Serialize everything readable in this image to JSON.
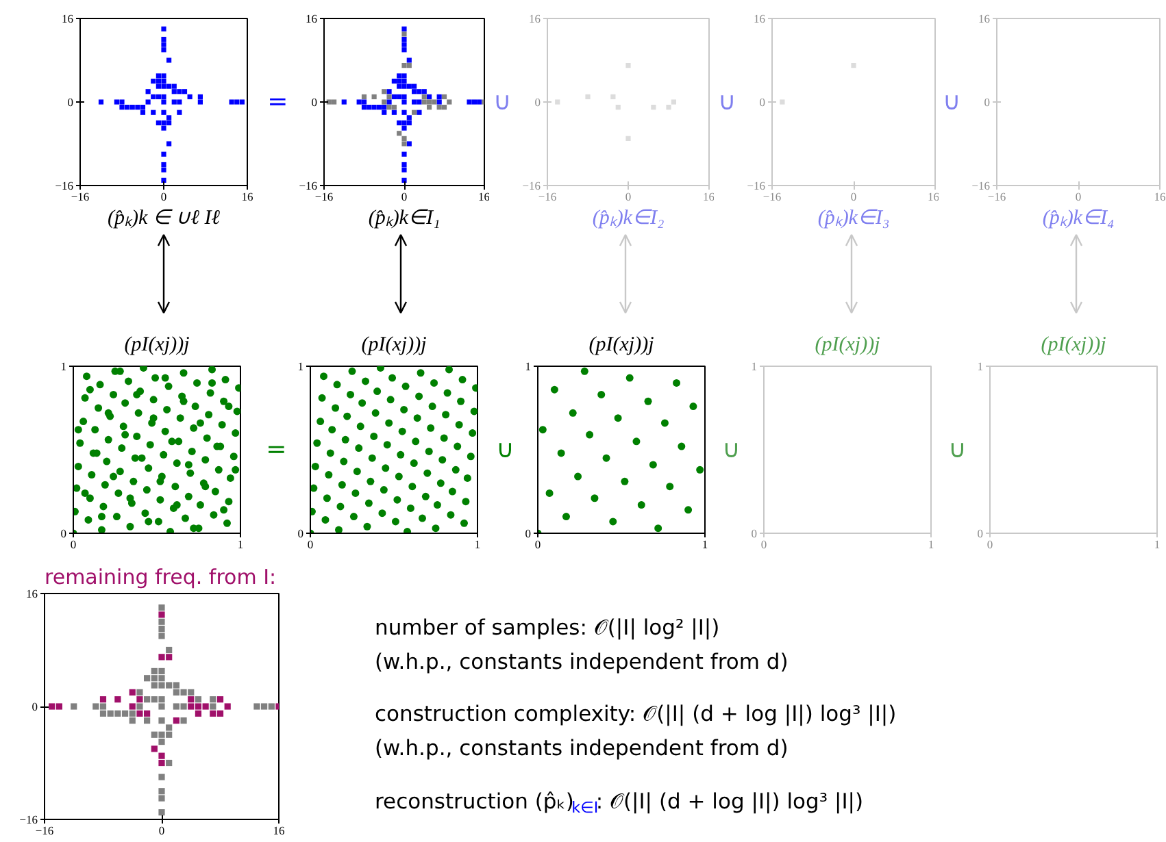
{
  "chart_data": [
    {
      "type": "scatter",
      "xlabel": "(p̂ₖ)k ∈ ∪ℓ Iℓ",
      "xlim": [
        -16,
        16
      ],
      "ylim": [
        -16,
        16
      ],
      "xticks": [
        -16,
        0,
        16
      ],
      "yticks": [
        -16,
        0,
        16
      ],
      "marker": "square",
      "series": [
        {
          "color": "#0000ff",
          "x": [
            0,
            0,
            0,
            0,
            1,
            -1,
            0,
            -2,
            -1,
            0,
            -1,
            0,
            1,
            2,
            -3,
            2,
            3,
            4,
            -2,
            -1,
            0,
            5,
            7,
            -12,
            -9,
            -8,
            -3,
            0,
            2,
            3,
            7,
            13,
            14,
            15,
            -8,
            -7,
            -6,
            -5,
            -4,
            -4,
            -2,
            0,
            3,
            1,
            -1,
            0,
            1,
            0,
            1,
            0,
            0,
            0,
            0
          ],
          "values": [
            14,
            12,
            11,
            10,
            8,
            5,
            5,
            4,
            4,
            4,
            3,
            3,
            3,
            3,
            2,
            2,
            2,
            2,
            1,
            1,
            1,
            1,
            1,
            0,
            0,
            0,
            0,
            0,
            0,
            0,
            0,
            0,
            0,
            0,
            -1,
            -1,
            -1,
            -1,
            -1,
            -2,
            -2,
            -2,
            -2,
            -3,
            -4,
            -4,
            -4,
            -5,
            -8,
            -10,
            -12,
            -13,
            -15
          ]
        }
      ]
    },
    {
      "type": "scatter",
      "xlabel": "(p̂ₖ)k∈I₁",
      "annotations": [
        "="
      ],
      "xlim": [
        -16,
        16
      ],
      "ylim": [
        -16,
        16
      ],
      "xticks": [
        -16,
        0,
        16
      ],
      "yticks": [
        -16,
        0,
        16
      ],
      "marker": "square",
      "series": [
        {
          "color": "#0000ff",
          "x": [
            0,
            0,
            0,
            0,
            1,
            -1,
            0,
            -2,
            -1,
            0,
            -1,
            0,
            1,
            2,
            -3,
            2,
            3,
            4,
            -2,
            -1,
            0,
            5,
            7,
            -12,
            -9,
            -8,
            -3,
            0,
            2,
            3,
            7,
            13,
            14,
            15,
            -8,
            -7,
            -6,
            -5,
            -4,
            -4,
            -2,
            0,
            3,
            1,
            -1,
            0,
            1,
            0,
            1,
            0,
            0,
            0,
            0
          ],
          "values": [
            14,
            12,
            11,
            10,
            8,
            5,
            5,
            4,
            4,
            4,
            3,
            3,
            3,
            3,
            2,
            2,
            2,
            2,
            1,
            1,
            1,
            1,
            1,
            0,
            0,
            0,
            0,
            0,
            0,
            0,
            0,
            0,
            0,
            0,
            -1,
            -1,
            -1,
            -1,
            -1,
            -2,
            -2,
            -2,
            -2,
            -3,
            -4,
            -4,
            -4,
            -5,
            -8,
            -10,
            -12,
            -13,
            -15
          ]
        },
        {
          "color": "#808080",
          "x": [
            0,
            0,
            1,
            -4,
            -8,
            -6,
            -3,
            4,
            8,
            -15,
            -14,
            -4,
            4,
            5,
            6,
            9,
            16,
            -3,
            -2,
            5,
            7,
            8,
            2,
            -1,
            0,
            0
          ],
          "values": [
            13,
            7,
            7,
            2,
            1,
            1,
            1,
            1,
            1,
            0,
            0,
            0,
            0,
            0,
            0,
            0,
            0,
            -1,
            -1,
            -1,
            -1,
            -1,
            -2,
            -6,
            -7,
            -8
          ]
        }
      ]
    },
    {
      "type": "scatter",
      "xlabel": "(p̂ₖ)k∈I₂",
      "annotations": [
        "∪"
      ],
      "xlim": [
        -16,
        16
      ],
      "ylim": [
        -16,
        16
      ],
      "xticks": [
        -16,
        0,
        16
      ],
      "yticks": [
        -16,
        0,
        16
      ],
      "marker": "square",
      "series": [
        {
          "color": "#dcdcdc",
          "x": [
            -14,
            -8,
            -3,
            -2,
            0,
            0,
            5,
            8,
            9
          ],
          "values": [
            0,
            1,
            1,
            -1,
            7,
            -7,
            -1,
            -1,
            0
          ]
        }
      ]
    },
    {
      "type": "scatter",
      "xlabel": "(p̂ₖ)k∈I₃",
      "annotations": [
        "∪"
      ],
      "xlim": [
        -16,
        16
      ],
      "ylim": [
        -16,
        16
      ],
      "xticks": [
        -16,
        0,
        16
      ],
      "yticks": [
        -16,
        0,
        16
      ],
      "marker": "square",
      "series": [
        {
          "color": "#dcdcdc",
          "x": [
            -14,
            0
          ],
          "values": [
            0,
            7
          ]
        }
      ]
    },
    {
      "type": "scatter",
      "xlabel": "(p̂ₖ)k∈I₄",
      "annotations": [
        "∪"
      ],
      "xlim": [
        -16,
        16
      ],
      "ylim": [
        -16,
        16
      ],
      "xticks": [
        -16,
        0,
        16
      ],
      "yticks": [
        -16,
        0,
        16
      ]
    },
    {
      "type": "scatter",
      "title": "(pI(xj))j",
      "xlim": [
        0,
        1
      ],
      "ylim": [
        0,
        1
      ],
      "xticks": [
        0,
        1
      ],
      "yticks": [
        0,
        1
      ],
      "marker": "circle",
      "series": [
        {
          "color": "#008000",
          "x": [
            0.0,
            0.01,
            0.02,
            0.03,
            0.04,
            0.06,
            0.07,
            0.08,
            0.09,
            0.1,
            0.11,
            0.12,
            0.13,
            0.15,
            0.16,
            0.17,
            0.18,
            0.19,
            0.2,
            0.21,
            0.22,
            0.24,
            0.25,
            0.26,
            0.27,
            0.28,
            0.29,
            0.3,
            0.31,
            0.33,
            0.34,
            0.35,
            0.36,
            0.37,
            0.38,
            0.39,
            0.4,
            0.42,
            0.43,
            0.44,
            0.45,
            0.46,
            0.47,
            0.48,
            0.49,
            0.51,
            0.52,
            0.53,
            0.54,
            0.55,
            0.56,
            0.57,
            0.58,
            0.6,
            0.61,
            0.62,
            0.63,
            0.64,
            0.65,
            0.66,
            0.67,
            0.69,
            0.7,
            0.71,
            0.72,
            0.73,
            0.74,
            0.75,
            0.76,
            0.78,
            0.79,
            0.8,
            0.81,
            0.82,
            0.83,
            0.84,
            0.85,
            0.87,
            0.88,
            0.89,
            0.9,
            0.91,
            0.92,
            0.93,
            0.94,
            0.96,
            0.97,
            0.98,
            0.99,
            0.03,
            0.07,
            0.1,
            0.14,
            0.17,
            0.21,
            0.24,
            0.28,
            0.31,
            0.34,
            0.38,
            0.41,
            0.45,
            0.48,
            0.52,
            0.55,
            0.59,
            0.62,
            0.66,
            0.69,
            0.72,
            0.76,
            0.79,
            0.83,
            0.86,
            0.9,
            0.93,
            0.97
          ],
          "values": [
            0.0,
            0.13,
            0.27,
            0.4,
            0.54,
            0.67,
            0.81,
            0.94,
            0.08,
            0.21,
            0.35,
            0.48,
            0.62,
            0.75,
            0.89,
            0.02,
            0.16,
            0.29,
            0.43,
            0.56,
            0.7,
            0.83,
            0.97,
            0.1,
            0.24,
            0.37,
            0.51,
            0.64,
            0.78,
            0.91,
            0.04,
            0.18,
            0.31,
            0.45,
            0.58,
            0.72,
            0.85,
            0.99,
            0.12,
            0.26,
            0.39,
            0.53,
            0.66,
            0.8,
            0.93,
            0.07,
            0.2,
            0.34,
            0.47,
            0.61,
            0.74,
            0.88,
            0.01,
            0.15,
            0.28,
            0.42,
            0.55,
            0.69,
            0.82,
            0.96,
            0.09,
            0.22,
            0.36,
            0.49,
            0.63,
            0.76,
            0.9,
            0.03,
            0.17,
            0.3,
            0.44,
            0.57,
            0.71,
            0.84,
            0.98,
            0.11,
            0.25,
            0.38,
            0.52,
            0.65,
            0.79,
            0.92,
            0.06,
            0.19,
            0.33,
            0.46,
            0.6,
            0.73,
            0.87,
            0.62,
            0.24,
            0.86,
            0.48,
            0.1,
            0.72,
            0.34,
            0.97,
            0.59,
            0.21,
            0.83,
            0.45,
            0.07,
            0.69,
            0.31,
            0.93,
            0.55,
            0.17,
            0.79,
            0.41,
            0.03,
            0.66,
            0.28,
            0.9,
            0.52,
            0.14,
            0.76,
            0.38
          ]
        }
      ]
    },
    {
      "type": "scatter",
      "title": "(pI(xj))j",
      "annotations": [
        "="
      ],
      "xlim": [
        0,
        1
      ],
      "ylim": [
        0,
        1
      ],
      "xticks": [
        0,
        1
      ],
      "yticks": [
        0,
        1
      ],
      "marker": "circle",
      "series": [
        {
          "color": "#008000",
          "x": [
            0.0,
            0.01,
            0.02,
            0.03,
            0.04,
            0.06,
            0.07,
            0.08,
            0.09,
            0.1,
            0.11,
            0.12,
            0.13,
            0.15,
            0.16,
            0.17,
            0.18,
            0.19,
            0.2,
            0.21,
            0.22,
            0.24,
            0.25,
            0.26,
            0.27,
            0.28,
            0.29,
            0.3,
            0.31,
            0.33,
            0.34,
            0.35,
            0.36,
            0.37,
            0.38,
            0.39,
            0.4,
            0.42,
            0.43,
            0.44,
            0.45,
            0.46,
            0.47,
            0.48,
            0.49,
            0.51,
            0.52,
            0.53,
            0.54,
            0.55,
            0.56,
            0.57,
            0.58,
            0.6,
            0.61,
            0.62,
            0.63,
            0.64,
            0.65,
            0.66,
            0.67,
            0.69,
            0.7,
            0.71,
            0.72,
            0.73,
            0.74,
            0.75,
            0.76,
            0.78,
            0.79,
            0.8,
            0.81,
            0.82,
            0.83,
            0.84,
            0.85,
            0.87,
            0.88,
            0.89,
            0.9,
            0.91,
            0.92,
            0.93,
            0.94,
            0.96,
            0.97,
            0.98,
            0.99
          ],
          "values": [
            0.0,
            0.13,
            0.27,
            0.4,
            0.54,
            0.67,
            0.81,
            0.94,
            0.08,
            0.21,
            0.35,
            0.48,
            0.62,
            0.75,
            0.89,
            0.02,
            0.16,
            0.29,
            0.43,
            0.56,
            0.7,
            0.83,
            0.97,
            0.1,
            0.24,
            0.37,
            0.51,
            0.64,
            0.78,
            0.91,
            0.04,
            0.18,
            0.31,
            0.45,
            0.58,
            0.72,
            0.85,
            0.99,
            0.12,
            0.26,
            0.39,
            0.53,
            0.66,
            0.8,
            0.93,
            0.07,
            0.2,
            0.34,
            0.47,
            0.61,
            0.74,
            0.88,
            0.01,
            0.15,
            0.28,
            0.42,
            0.55,
            0.69,
            0.82,
            0.96,
            0.09,
            0.22,
            0.36,
            0.49,
            0.63,
            0.76,
            0.9,
            0.03,
            0.17,
            0.3,
            0.44,
            0.57,
            0.71,
            0.84,
            0.98,
            0.11,
            0.25,
            0.38,
            0.52,
            0.65,
            0.79,
            0.92,
            0.06,
            0.19,
            0.33,
            0.46,
            0.6,
            0.73,
            0.87
          ]
        }
      ]
    },
    {
      "type": "scatter",
      "title": "(pI(xj))j",
      "annotations": [
        "∪"
      ],
      "xlim": [
        0,
        1
      ],
      "ylim": [
        0,
        1
      ],
      "xticks": [
        0,
        1
      ],
      "yticks": [
        0,
        1
      ],
      "marker": "circle",
      "series": [
        {
          "color": "#008000",
          "x": [
            0.0,
            0.03,
            0.07,
            0.1,
            0.14,
            0.17,
            0.21,
            0.24,
            0.28,
            0.31,
            0.34,
            0.38,
            0.41,
            0.45,
            0.48,
            0.52,
            0.55,
            0.59,
            0.62,
            0.66,
            0.69,
            0.72,
            0.76,
            0.79,
            0.83,
            0.86,
            0.9,
            0.93,
            0.97
          ],
          "values": [
            0.0,
            0.62,
            0.24,
            0.86,
            0.48,
            0.1,
            0.72,
            0.34,
            0.97,
            0.59,
            0.21,
            0.83,
            0.45,
            0.07,
            0.69,
            0.31,
            0.93,
            0.55,
            0.17,
            0.79,
            0.41,
            0.03,
            0.66,
            0.28,
            0.9,
            0.52,
            0.14,
            0.76,
            0.38
          ]
        }
      ]
    },
    {
      "type": "scatter",
      "title": "(pI(xj))j",
      "annotations": [
        "∪"
      ],
      "xlim": [
        0,
        1
      ],
      "ylim": [
        0,
        1
      ],
      "xticks": [
        0,
        1
      ],
      "yticks": [
        0,
        1
      ]
    },
    {
      "type": "scatter",
      "title": "(pI(xj))j",
      "annotations": [
        "∪"
      ],
      "xlim": [
        0,
        1
      ],
      "ylim": [
        0,
        1
      ],
      "xticks": [
        0,
        1
      ],
      "yticks": [
        0,
        1
      ]
    },
    {
      "type": "scatter",
      "title": "remaining freq. from I:",
      "xlim": [
        -16,
        16
      ],
      "ylim": [
        -16,
        16
      ],
      "xticks": [
        -16,
        0,
        16
      ],
      "yticks": [
        -16,
        0,
        16
      ],
      "marker": "square",
      "series": [
        {
          "color": "#808080",
          "x": [
            0,
            0,
            0,
            0,
            1,
            -1,
            0,
            -2,
            -1,
            0,
            -1,
            0,
            1,
            2,
            -3,
            2,
            3,
            4,
            -2,
            -1,
            0,
            5,
            7,
            -12,
            -9,
            -8,
            -3,
            0,
            2,
            3,
            7,
            13,
            14,
            15,
            -8,
            -7,
            -6,
            -5,
            -4,
            -4,
            -2,
            0,
            3,
            1,
            -1,
            0,
            1,
            0,
            1,
            0,
            0,
            0,
            0
          ],
          "values": [
            14,
            12,
            11,
            10,
            8,
            5,
            5,
            4,
            4,
            4,
            3,
            3,
            3,
            3,
            2,
            2,
            2,
            2,
            1,
            1,
            1,
            1,
            1,
            0,
            0,
            0,
            0,
            0,
            0,
            0,
            0,
            0,
            0,
            0,
            -1,
            -1,
            -1,
            -1,
            -1,
            -2,
            -2,
            -2,
            -2,
            -3,
            -4,
            -4,
            -4,
            -5,
            -8,
            -10,
            -12,
            -13,
            -15
          ]
        },
        {
          "color": "#a0106a",
          "x": [
            0,
            0,
            1,
            -4,
            -8,
            -6,
            -3,
            4,
            8,
            -15,
            -14,
            -4,
            4,
            5,
            6,
            9,
            16,
            -3,
            -2,
            5,
            7,
            8,
            2,
            -1,
            0,
            0
          ],
          "values": [
            13,
            7,
            7,
            2,
            1,
            1,
            1,
            1,
            1,
            0,
            0,
            0,
            0,
            0,
            0,
            0,
            0,
            -1,
            -1,
            -1,
            -1,
            -1,
            -2,
            -6,
            -7,
            -8
          ]
        }
      ]
    },
    {
      "type": "other",
      "annotations": [
        "number of samples: 𝒪(|I| log² |I|)",
        "(w.h.p., constants independent from d)",
        "construction complexity: 𝒪(|I| (d + log |I|) log³ |I|)",
        "(w.h.p., constants independent from d)",
        "reconstruction (p̂ₖ)$_{k∈I}$: 𝒪(|I| (d + log |I|) log³ |I|)"
      ]
    }
  ]
}
